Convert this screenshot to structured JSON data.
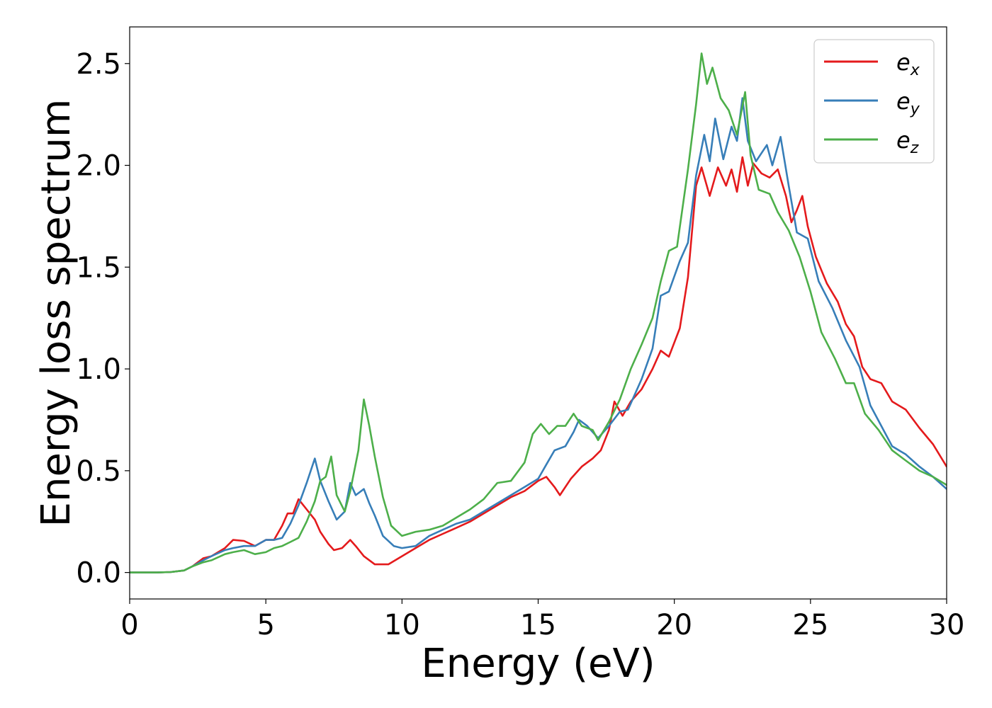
{
  "chart_data": {
    "type": "line",
    "title": "",
    "xlabel": "Energy (eV)",
    "ylabel": "Energy loss spectrum",
    "xlim": [
      0,
      30
    ],
    "ylim": [
      -0.13,
      2.68
    ],
    "xticks": [
      0,
      5,
      10,
      15,
      20,
      25,
      30
    ],
    "xtick_labels": [
      "0",
      "5",
      "10",
      "15",
      "20",
      "25",
      "30"
    ],
    "yticks": [
      0.0,
      0.5,
      1.0,
      1.5,
      2.0,
      2.5
    ],
    "ytick_labels": [
      "0.0",
      "0.5",
      "1.0",
      "1.5",
      "2.0",
      "2.5"
    ],
    "grid": false,
    "legend_position": "top-right",
    "series": [
      {
        "name": "e_x",
        "legend_base": "e",
        "legend_sub": "x",
        "color": "#e41a1c",
        "points": [
          [
            0,
            0
          ],
          [
            1,
            0
          ],
          [
            1.5,
            0.002
          ],
          [
            2,
            0.01
          ],
          [
            2.3,
            0.03
          ],
          [
            2.7,
            0.07
          ],
          [
            3,
            0.08
          ],
          [
            3.5,
            0.12
          ],
          [
            3.8,
            0.16
          ],
          [
            4.2,
            0.155
          ],
          [
            4.6,
            0.13
          ],
          [
            5,
            0.16
          ],
          [
            5.3,
            0.16
          ],
          [
            5.6,
            0.23
          ],
          [
            5.8,
            0.29
          ],
          [
            6.0,
            0.29
          ],
          [
            6.2,
            0.36
          ],
          [
            6.5,
            0.31
          ],
          [
            6.8,
            0.26
          ],
          [
            7.0,
            0.2
          ],
          [
            7.3,
            0.14
          ],
          [
            7.5,
            0.11
          ],
          [
            7.8,
            0.12
          ],
          [
            8.1,
            0.16
          ],
          [
            8.3,
            0.13
          ],
          [
            8.6,
            0.08
          ],
          [
            9.0,
            0.04
          ],
          [
            9.5,
            0.04
          ],
          [
            10,
            0.08
          ],
          [
            10.5,
            0.12
          ],
          [
            11,
            0.16
          ],
          [
            11.5,
            0.19
          ],
          [
            12,
            0.22
          ],
          [
            12.5,
            0.25
          ],
          [
            13,
            0.29
          ],
          [
            13.5,
            0.33
          ],
          [
            14,
            0.37
          ],
          [
            14.5,
            0.4
          ],
          [
            15,
            0.45
          ],
          [
            15.3,
            0.47
          ],
          [
            15.6,
            0.42
          ],
          [
            15.8,
            0.38
          ],
          [
            16.2,
            0.46
          ],
          [
            16.6,
            0.52
          ],
          [
            17,
            0.56
          ],
          [
            17.3,
            0.6
          ],
          [
            17.6,
            0.7
          ],
          [
            17.8,
            0.84
          ],
          [
            18.1,
            0.77
          ],
          [
            18.4,
            0.84
          ],
          [
            18.8,
            0.9
          ],
          [
            19.2,
            1.0
          ],
          [
            19.5,
            1.09
          ],
          [
            19.8,
            1.06
          ],
          [
            20.2,
            1.2
          ],
          [
            20.5,
            1.45
          ],
          [
            20.8,
            1.9
          ],
          [
            21.0,
            1.99
          ],
          [
            21.3,
            1.85
          ],
          [
            21.6,
            1.99
          ],
          [
            21.9,
            1.9
          ],
          [
            22.1,
            1.98
          ],
          [
            22.3,
            1.87
          ],
          [
            22.5,
            2.04
          ],
          [
            22.7,
            1.9
          ],
          [
            22.9,
            2.01
          ],
          [
            23.2,
            1.96
          ],
          [
            23.5,
            1.94
          ],
          [
            23.8,
            1.98
          ],
          [
            24.1,
            1.85
          ],
          [
            24.3,
            1.72
          ],
          [
            24.5,
            1.78
          ],
          [
            24.7,
            1.85
          ],
          [
            24.9,
            1.7
          ],
          [
            25.2,
            1.55
          ],
          [
            25.6,
            1.42
          ],
          [
            26,
            1.33
          ],
          [
            26.3,
            1.22
          ],
          [
            26.6,
            1.16
          ],
          [
            26.9,
            1.01
          ],
          [
            27.2,
            0.95
          ],
          [
            27.6,
            0.93
          ],
          [
            28,
            0.84
          ],
          [
            28.5,
            0.8
          ],
          [
            29,
            0.71
          ],
          [
            29.5,
            0.63
          ],
          [
            30,
            0.52
          ]
        ]
      },
      {
        "name": "e_y",
        "legend_base": "e",
        "legend_sub": "y",
        "color": "#377eb8",
        "points": [
          [
            0,
            0
          ],
          [
            1,
            0
          ],
          [
            1.5,
            0.002
          ],
          [
            2,
            0.01
          ],
          [
            2.3,
            0.03
          ],
          [
            2.7,
            0.06
          ],
          [
            3,
            0.08
          ],
          [
            3.5,
            0.11
          ],
          [
            3.8,
            0.12
          ],
          [
            4.2,
            0.13
          ],
          [
            4.6,
            0.13
          ],
          [
            5,
            0.16
          ],
          [
            5.3,
            0.16
          ],
          [
            5.6,
            0.17
          ],
          [
            5.9,
            0.24
          ],
          [
            6.2,
            0.33
          ],
          [
            6.5,
            0.44
          ],
          [
            6.8,
            0.56
          ],
          [
            7.0,
            0.45
          ],
          [
            7.3,
            0.35
          ],
          [
            7.6,
            0.26
          ],
          [
            7.9,
            0.3
          ],
          [
            8.1,
            0.44
          ],
          [
            8.3,
            0.38
          ],
          [
            8.6,
            0.41
          ],
          [
            8.8,
            0.34
          ],
          [
            9.0,
            0.28
          ],
          [
            9.3,
            0.18
          ],
          [
            9.7,
            0.13
          ],
          [
            10,
            0.12
          ],
          [
            10.5,
            0.13
          ],
          [
            11,
            0.18
          ],
          [
            11.5,
            0.21
          ],
          [
            12,
            0.24
          ],
          [
            12.5,
            0.26
          ],
          [
            13,
            0.3
          ],
          [
            13.5,
            0.34
          ],
          [
            14,
            0.38
          ],
          [
            14.5,
            0.42
          ],
          [
            15,
            0.46
          ],
          [
            15.3,
            0.53
          ],
          [
            15.6,
            0.6
          ],
          [
            16,
            0.62
          ],
          [
            16.3,
            0.69
          ],
          [
            16.5,
            0.75
          ],
          [
            16.8,
            0.72
          ],
          [
            17.2,
            0.66
          ],
          [
            17.6,
            0.72
          ],
          [
            18,
            0.79
          ],
          [
            18.3,
            0.8
          ],
          [
            18.8,
            0.95
          ],
          [
            19.2,
            1.1
          ],
          [
            19.5,
            1.36
          ],
          [
            19.8,
            1.38
          ],
          [
            20.2,
            1.53
          ],
          [
            20.5,
            1.62
          ],
          [
            20.8,
            1.95
          ],
          [
            21.1,
            2.15
          ],
          [
            21.3,
            2.02
          ],
          [
            21.5,
            2.23
          ],
          [
            21.8,
            2.03
          ],
          [
            22.1,
            2.19
          ],
          [
            22.3,
            2.12
          ],
          [
            22.5,
            2.33
          ],
          [
            22.7,
            2.12
          ],
          [
            23.0,
            2.02
          ],
          [
            23.4,
            2.1
          ],
          [
            23.6,
            2.0
          ],
          [
            23.9,
            2.14
          ],
          [
            24.2,
            1.9
          ],
          [
            24.5,
            1.67
          ],
          [
            24.9,
            1.64
          ],
          [
            25.3,
            1.43
          ],
          [
            25.8,
            1.3
          ],
          [
            26.3,
            1.14
          ],
          [
            26.8,
            1.01
          ],
          [
            27.2,
            0.82
          ],
          [
            27.6,
            0.72
          ],
          [
            28,
            0.62
          ],
          [
            28.5,
            0.58
          ],
          [
            29,
            0.52
          ],
          [
            29.5,
            0.47
          ],
          [
            30,
            0.41
          ]
        ]
      },
      {
        "name": "e_z",
        "legend_base": "e",
        "legend_sub": "z",
        "color": "#4daf4a",
        "points": [
          [
            0,
            0
          ],
          [
            1,
            0
          ],
          [
            1.5,
            0.002
          ],
          [
            2,
            0.01
          ],
          [
            2.3,
            0.03
          ],
          [
            2.7,
            0.05
          ],
          [
            3,
            0.06
          ],
          [
            3.5,
            0.09
          ],
          [
            3.8,
            0.1
          ],
          [
            4.2,
            0.11
          ],
          [
            4.6,
            0.09
          ],
          [
            5,
            0.1
          ],
          [
            5.3,
            0.12
          ],
          [
            5.6,
            0.13
          ],
          [
            5.9,
            0.15
          ],
          [
            6.2,
            0.17
          ],
          [
            6.5,
            0.25
          ],
          [
            6.8,
            0.35
          ],
          [
            7.0,
            0.45
          ],
          [
            7.2,
            0.47
          ],
          [
            7.4,
            0.57
          ],
          [
            7.6,
            0.38
          ],
          [
            7.9,
            0.3
          ],
          [
            8.1,
            0.4
          ],
          [
            8.4,
            0.6
          ],
          [
            8.6,
            0.85
          ],
          [
            8.8,
            0.72
          ],
          [
            9.0,
            0.57
          ],
          [
            9.3,
            0.37
          ],
          [
            9.6,
            0.23
          ],
          [
            10,
            0.18
          ],
          [
            10.5,
            0.2
          ],
          [
            11,
            0.21
          ],
          [
            11.5,
            0.23
          ],
          [
            12,
            0.27
          ],
          [
            12.5,
            0.31
          ],
          [
            13,
            0.36
          ],
          [
            13.5,
            0.44
          ],
          [
            14,
            0.45
          ],
          [
            14.5,
            0.54
          ],
          [
            14.8,
            0.68
          ],
          [
            15.1,
            0.73
          ],
          [
            15.4,
            0.68
          ],
          [
            15.7,
            0.72
          ],
          [
            16,
            0.72
          ],
          [
            16.3,
            0.78
          ],
          [
            16.6,
            0.72
          ],
          [
            17,
            0.7
          ],
          [
            17.2,
            0.65
          ],
          [
            17.6,
            0.74
          ],
          [
            18,
            0.85
          ],
          [
            18.4,
            1.0
          ],
          [
            18.8,
            1.12
          ],
          [
            19.2,
            1.25
          ],
          [
            19.5,
            1.43
          ],
          [
            19.8,
            1.58
          ],
          [
            20.1,
            1.6
          ],
          [
            20.5,
            1.98
          ],
          [
            20.8,
            2.3
          ],
          [
            21.0,
            2.55
          ],
          [
            21.2,
            2.4
          ],
          [
            21.4,
            2.48
          ],
          [
            21.7,
            2.33
          ],
          [
            22.0,
            2.27
          ],
          [
            22.3,
            2.15
          ],
          [
            22.6,
            2.36
          ],
          [
            22.8,
            2.05
          ],
          [
            23.1,
            1.88
          ],
          [
            23.5,
            1.86
          ],
          [
            23.8,
            1.77
          ],
          [
            24.2,
            1.68
          ],
          [
            24.6,
            1.55
          ],
          [
            25,
            1.38
          ],
          [
            25.4,
            1.18
          ],
          [
            25.9,
            1.05
          ],
          [
            26.3,
            0.93
          ],
          [
            26.6,
            0.93
          ],
          [
            27.0,
            0.78
          ],
          [
            27.5,
            0.7
          ],
          [
            28,
            0.6
          ],
          [
            28.5,
            0.55
          ],
          [
            29,
            0.5
          ],
          [
            29.5,
            0.47
          ],
          [
            30,
            0.43
          ]
        ]
      }
    ]
  }
}
